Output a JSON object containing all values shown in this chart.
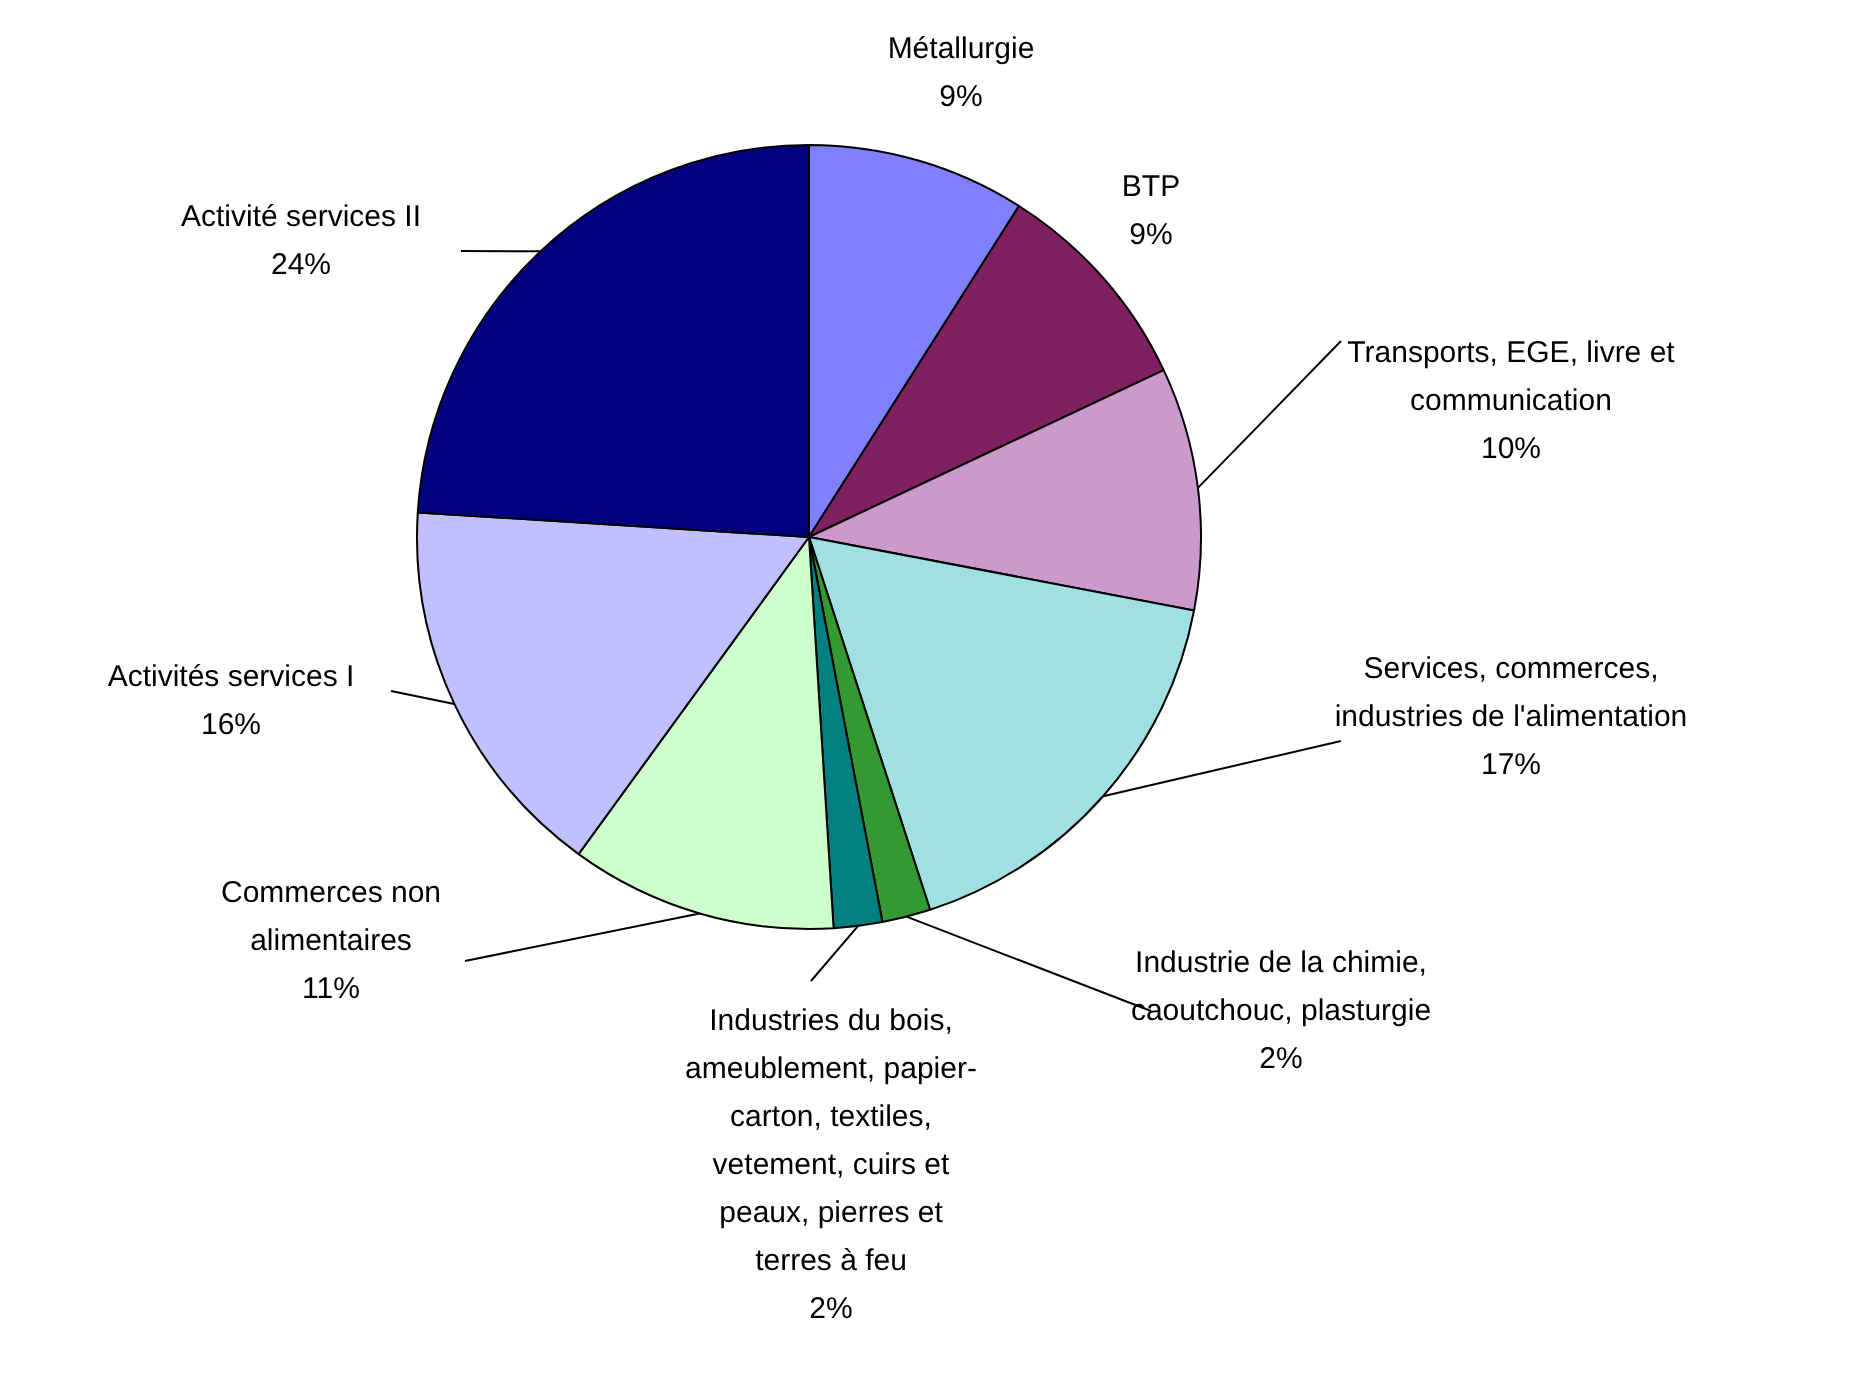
{
  "chart_data": {
    "type": "pie",
    "categories": [
      "Métallurgie",
      "BTP",
      "Transports, EGE, livre et communication",
      "Services, commerces, industries de l'alimentation",
      "Industrie de la chimie, caoutchouc, plasturgie",
      "Industries du bois, ameublement, papier-carton, textiles, vetement, cuirs et peaux, pierres et terres à feu",
      "Commerces non alimentaires",
      "Activités services I",
      "Activité services II"
    ],
    "values": [
      9,
      9,
      10,
      17,
      2,
      2,
      11,
      16,
      24
    ],
    "value_labels": [
      "9%",
      "9%",
      "10%",
      "17%",
      "2%",
      "2%",
      "11%",
      "16%",
      "24%"
    ],
    "colors": [
      "#8080ff",
      "#802060",
      "#cc99cc",
      "#a0e0e0",
      "#339933",
      "#008080",
      "#ccffcc",
      "#c0c0ff",
      "#000080"
    ]
  }
}
